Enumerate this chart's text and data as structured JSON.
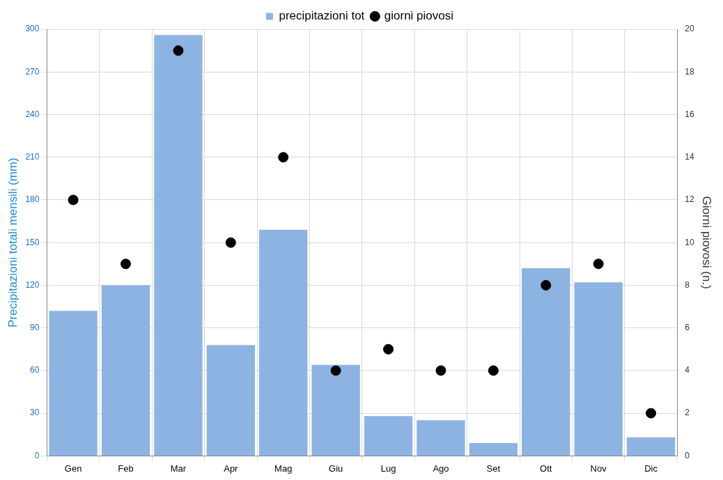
{
  "chart_data": {
    "type": "bar",
    "categories": [
      "Gen",
      "Feb",
      "Mar",
      "Apr",
      "Mag",
      "Giu",
      "Lug",
      "Ago",
      "Set",
      "Ott",
      "Nov",
      "Dic"
    ],
    "ylabel": "Precipitazioni totali mensili (mm)",
    "y2label": "Giorni piovosi (n.)",
    "ylim": [
      0,
      300
    ],
    "yticks": [
      0,
      30,
      60,
      90,
      120,
      150,
      180,
      210,
      240,
      270,
      300
    ],
    "y2lim": [
      0,
      20
    ],
    "y2ticks": [
      0,
      2,
      4,
      6,
      8,
      10,
      12,
      14,
      16,
      18,
      20
    ],
    "grid": true,
    "legend": "top",
    "series": [
      {
        "name": "precipitazioni tot",
        "color": "#8db3e2",
        "values": [
          102,
          120,
          296,
          78,
          159,
          64,
          28,
          25,
          9,
          132,
          122,
          13
        ]
      },
      {
        "name": "giorni piovosi",
        "type": "scatter",
        "axis": "y2",
        "marker": "circle",
        "color": "#000000",
        "x": [
          "Gen",
          "Feb",
          "Mar",
          "Apr",
          "Mag",
          "Giu",
          "Lug",
          "Ago",
          "Set",
          "Ott",
          "Nov",
          "Dic"
        ],
        "values": [
          12,
          9,
          19,
          10,
          14,
          4,
          5,
          4,
          4,
          8,
          9,
          2
        ]
      }
    ]
  }
}
